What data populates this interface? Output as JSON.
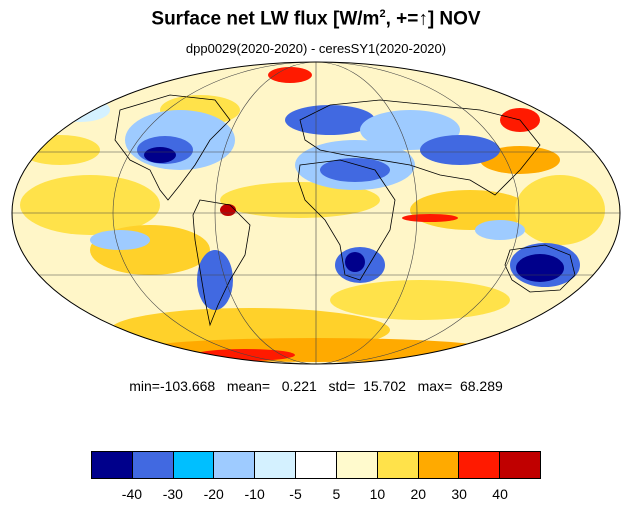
{
  "title": {
    "main": "Surface net LW flux [W/m",
    "superscript": "2",
    "after": ", +=",
    "arrow": "↑",
    "close": "]  NOV"
  },
  "subtitle": "dpp0029(2020-2020) - ceresSY1(2020-2020)",
  "stats": {
    "text": "min=-103.668   mean=   0.221   std=  15.702   max=  68.289",
    "min": -103.668,
    "mean": 0.221,
    "std": 15.702,
    "max": 68.289
  },
  "colorbar": {
    "colors": [
      "#00008b",
      "#4169e1",
      "#00bfff",
      "#9ecbff",
      "#d4f1ff",
      "#ffffff",
      "#fffacd",
      "#ffe24a",
      "#ffaa00",
      "#ff1a00",
      "#c00000"
    ],
    "labels": [
      "-40",
      "-30",
      "-20",
      "-10",
      "-5",
      "5",
      "10",
      "20",
      "30",
      "40"
    ]
  }
}
